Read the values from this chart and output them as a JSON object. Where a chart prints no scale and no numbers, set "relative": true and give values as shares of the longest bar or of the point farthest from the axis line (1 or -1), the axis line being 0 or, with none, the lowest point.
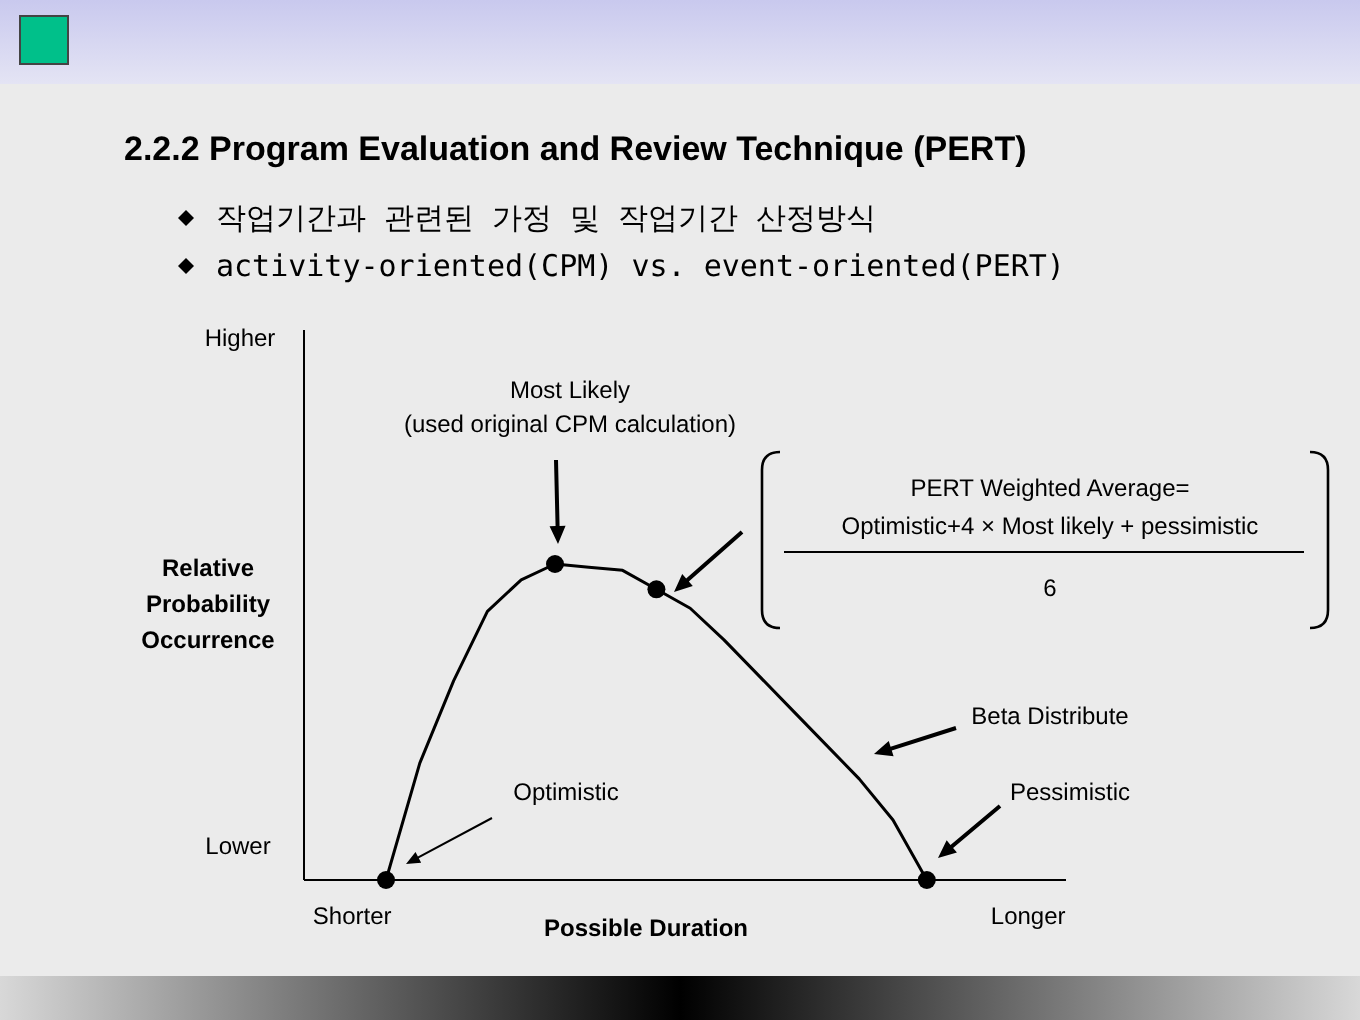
{
  "chart_data": {
    "type": "line",
    "title": "2.2.2 Program Evaluation and Review Technique (PERT)",
    "subtitle": "작업기간과 관련된 가정 및 작업기간 산정방식\nactivity-oriented(CPM) vs. event-oriented(PERT)",
    "xlabel": "Possible Duration",
    "ylabel": "Relative\nProbability\nOccurrence",
    "relative": true,
    "categories": [
      "Shorter",
      null,
      null,
      null,
      null,
      null,
      null,
      null,
      null,
      null,
      null,
      null,
      null,
      null,
      null,
      null,
      null,
      null,
      null,
      null,
      "Longer"
    ],
    "series": [
      {
        "color": "#000000",
        "marker": "none",
        "values": [
          null,
          0,
          0.37,
          0.63,
          0.85,
          0.95,
          1,
          0.99,
          0.98,
          0.92,
          0.86,
          0.76,
          0.65,
          0.54,
          0.43,
          0.32,
          0.19,
          0,
          null,
          null,
          null
        ]
      },
      {
        "type": "scatter",
        "color": "#000000",
        "marker": "circle",
        "values": [
          null,
          0,
          null,
          null,
          null,
          null,
          1,
          null,
          null,
          0.92,
          null,
          null,
          null,
          null,
          null,
          null,
          null,
          0,
          null,
          null,
          null
        ]
      }
    ],
    "annotations": [
      "Most Likely",
      "(used original CPM calculation)",
      "PERT Weighted Average=",
      "Optimistic+4 × Most likely + pessimistic",
      "6",
      "Beta Distribute",
      "Optimistic",
      "Pessimistic",
      "Higher",
      "Lower"
    ]
  }
}
